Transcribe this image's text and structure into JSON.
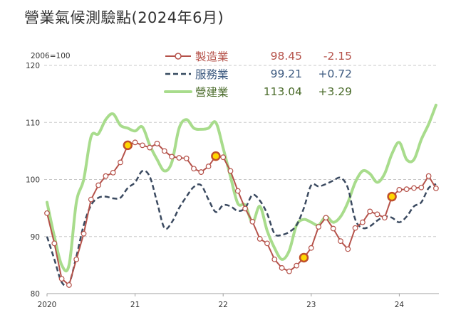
{
  "title": "營業氣候測驗點(2024年6月)",
  "base_label": "2006=100",
  "legend": [
    {
      "label": "製造業",
      "value": "98.45",
      "change": "-2.15",
      "color": "#b5524a",
      "style": "line-marker"
    },
    {
      "label": "服務業",
      "value": "99.21",
      "change": "+0.72",
      "color": "#34495e",
      "style": "dashed"
    },
    {
      "label": "營建業",
      "value": "113.04",
      "change": "+3.29",
      "color": "#a6d98a",
      "style": "solid-thick"
    }
  ],
  "colors": {
    "manufacturing": "#b5524a",
    "services": "#3b4a60",
    "construction": "#a8dc8c",
    "highlight_fill": "#ffd700",
    "highlight_stroke": "#c0502a",
    "grid": "#c8c8c8",
    "axis": "#a0a0a0",
    "legend_text_mfg": "#b5524a",
    "legend_text_svc": "#3d5a80",
    "legend_text_con": "#4a6b2a"
  },
  "chart_data": {
    "type": "line",
    "title": "營業氣候測驗點(2024年6月)",
    "xlabel": "",
    "ylabel": "2006=100",
    "ylim": [
      80,
      120
    ],
    "yticks": [
      80,
      90,
      100,
      110,
      120
    ],
    "xticks": [
      "2020",
      "21",
      "22",
      "23",
      "24"
    ],
    "grid": "horizontal dashed",
    "legend_position": "top-center",
    "x_start": "2020-01",
    "x_end": "2024-06",
    "frequency": "monthly",
    "highlighted_points": [
      {
        "x": "2020-12",
        "series": "製造業"
      },
      {
        "x": "2021-12",
        "series": "製造業"
      },
      {
        "x": "2022-12",
        "series": "製造業"
      },
      {
        "x": "2023-12",
        "series": "製造業"
      }
    ],
    "series": [
      {
        "name": "製造業",
        "latest": 98.45,
        "change": -2.15,
        "values": [
          94.1,
          88.8,
          82.6,
          81.5,
          86.0,
          90.5,
          96.5,
          99.0,
          100.6,
          101.2,
          103.0,
          106.0,
          106.5,
          106.0,
          105.6,
          106.3,
          105.0,
          104.0,
          103.8,
          103.7,
          101.9,
          101.3,
          102.3,
          104.1,
          103.9,
          101.5,
          98.0,
          94.9,
          92.6,
          89.6,
          88.8,
          86.0,
          84.5,
          83.9,
          84.9,
          86.3,
          88.0,
          91.7,
          93.3,
          91.4,
          89.2,
          87.8,
          91.5,
          92.5,
          94.4,
          93.9,
          93.3,
          97.0,
          98.2,
          98.3,
          98.5,
          98.6,
          100.6,
          98.45
        ]
      },
      {
        "name": "服務業",
        "latest": 99.21,
        "change": 0.72,
        "values": [
          90.0,
          86.0,
          82.0,
          81.8,
          86.5,
          92.0,
          95.5,
          96.8,
          97.0,
          96.7,
          96.8,
          98.5,
          99.5,
          101.5,
          100.5,
          96.0,
          91.5,
          92.5,
          95.0,
          97.0,
          98.7,
          99.0,
          96.5,
          94.3,
          95.5,
          95.3,
          94.5,
          95.0,
          97.3,
          96.3,
          94.0,
          90.5,
          90.3,
          90.8,
          92.0,
          95.0,
          99.0,
          98.8,
          99.2,
          99.8,
          100.3,
          98.5,
          93.0,
          91.5,
          91.8,
          92.8,
          93.5,
          93.3,
          92.5,
          93.5,
          95.3,
          96.0,
          98.5,
          99.21
        ]
      },
      {
        "name": "營建業",
        "latest": 113.04,
        "change": 3.29,
        "values": [
          96.0,
          90.0,
          85.0,
          85.0,
          96.0,
          100.0,
          107.5,
          108.0,
          110.5,
          111.5,
          109.5,
          109.0,
          108.5,
          109.2,
          106.0,
          103.5,
          101.5,
          103.0,
          109.0,
          110.5,
          109.0,
          108.8,
          109.0,
          110.0,
          105.5,
          100.5,
          95.8,
          95.5,
          92.5,
          95.3,
          91.0,
          88.0,
          86.0,
          87.5,
          92.0,
          93.0,
          92.5,
          92.0,
          93.5,
          92.5,
          93.5,
          96.0,
          99.5,
          101.5,
          101.0,
          99.5,
          101.0,
          104.5,
          106.5,
          103.5,
          103.5,
          107.0,
          109.7,
          113.04
        ]
      }
    ]
  }
}
